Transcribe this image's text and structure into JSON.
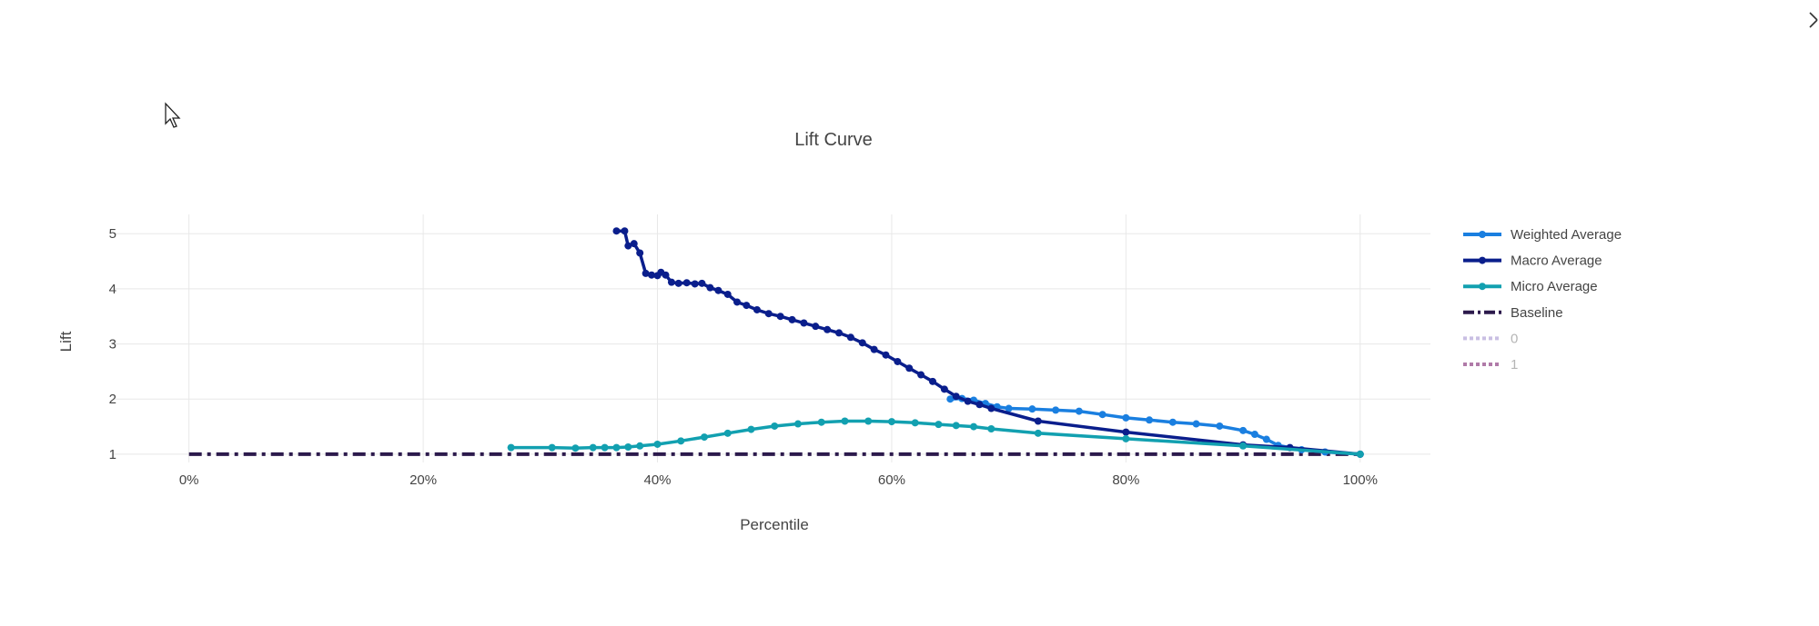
{
  "colors": {
    "weighted": "#1a7fe0",
    "macro": "#0a1e8c",
    "micro": "#12a0b0",
    "baseline": "#2c1a4c",
    "class0": "#c9bfe3",
    "class1": "#b07aa8",
    "grid": "#e8e8e8",
    "text": "#444444"
  },
  "icons": {
    "close": "close-icon",
    "cursor": "mouse-pointer-icon"
  },
  "chart_data": {
    "type": "line",
    "title": "Lift Curve",
    "xlabel": "Percentile",
    "ylabel": "Lift",
    "xlim": [
      -0.065,
      1.06
    ],
    "ylim": [
      0.85,
      5.35
    ],
    "x_ticks": [
      0,
      0.2,
      0.4,
      0.6,
      0.8,
      1.0
    ],
    "x_tick_labels": [
      "0%",
      "20%",
      "40%",
      "60%",
      "80%",
      "100%"
    ],
    "y_ticks": [
      1,
      2,
      3,
      4,
      5
    ],
    "y_tick_labels": [
      "1",
      "2",
      "3",
      "4",
      "5"
    ],
    "grid": true,
    "legend_placement": "right",
    "series": [
      {
        "name": "Weighted Average",
        "color_key": "weighted",
        "style": "solid-markers",
        "points": [
          [
            0.65,
            2.0
          ],
          [
            0.66,
            2.01
          ],
          [
            0.67,
            1.98
          ],
          [
            0.68,
            1.92
          ],
          [
            0.69,
            1.86
          ],
          [
            0.7,
            1.83
          ],
          [
            0.72,
            1.82
          ],
          [
            0.74,
            1.8
          ],
          [
            0.76,
            1.78
          ],
          [
            0.78,
            1.72
          ],
          [
            0.8,
            1.66
          ],
          [
            0.82,
            1.62
          ],
          [
            0.84,
            1.58
          ],
          [
            0.86,
            1.55
          ],
          [
            0.88,
            1.51
          ],
          [
            0.9,
            1.43
          ],
          [
            0.91,
            1.36
          ],
          [
            0.92,
            1.27
          ],
          [
            0.93,
            1.16
          ],
          [
            0.95,
            1.08
          ],
          [
            0.97,
            1.04
          ],
          [
            1.0,
            1.0
          ]
        ]
      },
      {
        "name": "Macro Average",
        "color_key": "macro",
        "style": "solid-markers",
        "points": [
          [
            0.365,
            5.05
          ],
          [
            0.372,
            5.05
          ],
          [
            0.375,
            4.78
          ],
          [
            0.38,
            4.82
          ],
          [
            0.385,
            4.65
          ],
          [
            0.39,
            4.28
          ],
          [
            0.395,
            4.25
          ],
          [
            0.4,
            4.24
          ],
          [
            0.403,
            4.3
          ],
          [
            0.407,
            4.25
          ],
          [
            0.412,
            4.12
          ],
          [
            0.418,
            4.1
          ],
          [
            0.425,
            4.11
          ],
          [
            0.432,
            4.09
          ],
          [
            0.438,
            4.1
          ],
          [
            0.445,
            4.02
          ],
          [
            0.452,
            3.97
          ],
          [
            0.46,
            3.9
          ],
          [
            0.468,
            3.76
          ],
          [
            0.476,
            3.7
          ],
          [
            0.485,
            3.62
          ],
          [
            0.495,
            3.55
          ],
          [
            0.505,
            3.5
          ],
          [
            0.515,
            3.44
          ],
          [
            0.525,
            3.38
          ],
          [
            0.535,
            3.32
          ],
          [
            0.545,
            3.26
          ],
          [
            0.555,
            3.2
          ],
          [
            0.565,
            3.12
          ],
          [
            0.575,
            3.02
          ],
          [
            0.585,
            2.9
          ],
          [
            0.595,
            2.8
          ],
          [
            0.605,
            2.68
          ],
          [
            0.615,
            2.56
          ],
          [
            0.625,
            2.44
          ],
          [
            0.635,
            2.32
          ],
          [
            0.645,
            2.18
          ],
          [
            0.655,
            2.05
          ],
          [
            0.665,
            1.96
          ],
          [
            0.675,
            1.9
          ],
          [
            0.685,
            1.83
          ],
          [
            0.725,
            1.6
          ],
          [
            0.8,
            1.4
          ],
          [
            0.9,
            1.17
          ],
          [
            0.94,
            1.12
          ],
          [
            1.0,
            1.0
          ]
        ]
      },
      {
        "name": "Micro Average",
        "color_key": "micro",
        "style": "solid-markers",
        "points": [
          [
            0.275,
            1.12
          ],
          [
            0.31,
            1.12
          ],
          [
            0.33,
            1.11
          ],
          [
            0.345,
            1.12
          ],
          [
            0.355,
            1.12
          ],
          [
            0.365,
            1.12
          ],
          [
            0.375,
            1.13
          ],
          [
            0.385,
            1.15
          ],
          [
            0.4,
            1.18
          ],
          [
            0.42,
            1.24
          ],
          [
            0.44,
            1.31
          ],
          [
            0.46,
            1.38
          ],
          [
            0.48,
            1.45
          ],
          [
            0.5,
            1.51
          ],
          [
            0.52,
            1.55
          ],
          [
            0.54,
            1.58
          ],
          [
            0.56,
            1.6
          ],
          [
            0.58,
            1.6
          ],
          [
            0.6,
            1.59
          ],
          [
            0.62,
            1.57
          ],
          [
            0.64,
            1.54
          ],
          [
            0.655,
            1.52
          ],
          [
            0.67,
            1.5
          ],
          [
            0.685,
            1.46
          ],
          [
            0.725,
            1.38
          ],
          [
            0.8,
            1.28
          ],
          [
            0.9,
            1.15
          ],
          [
            1.0,
            1.0
          ]
        ]
      },
      {
        "name": "Baseline",
        "color_key": "baseline",
        "style": "dashdot",
        "points": [
          [
            0,
            1
          ],
          [
            1,
            1
          ]
        ]
      },
      {
        "name": "0",
        "color_key": "class0",
        "style": "dotted-legendonly",
        "points": []
      },
      {
        "name": "1",
        "color_key": "class1",
        "style": "dotted-legendonly",
        "points": []
      }
    ]
  }
}
